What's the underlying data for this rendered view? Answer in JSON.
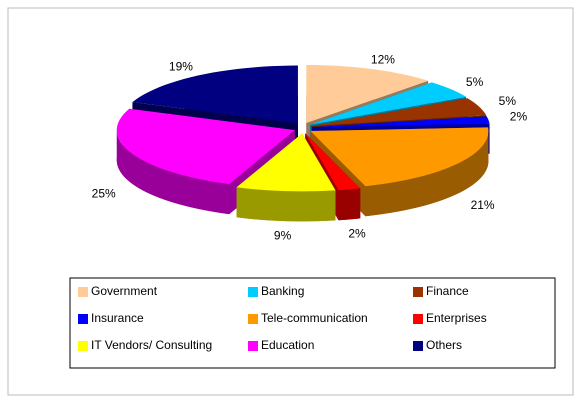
{
  "chart_data": {
    "type": "pie",
    "categories": [
      "Government",
      "Banking",
      "Finance",
      "Insurance",
      "Tele-communication",
      "Enterprises",
      "IT Vendors/ Consulting",
      "Education",
      "Others"
    ],
    "values": [
      12,
      5,
      5,
      2,
      21,
      2,
      9,
      25,
      19
    ],
    "value_labels": [
      "12%",
      "5%",
      "5%",
      "2%",
      "21%",
      "2%",
      "9%",
      "25%",
      "19%"
    ],
    "colors": [
      "#ffcc99",
      "#00ccff",
      "#993300",
      "#0000ff",
      "#ff9900",
      "#ff0000",
      "#ffff00",
      "#ff00ff",
      "#000080"
    ],
    "legend": "bottom"
  }
}
